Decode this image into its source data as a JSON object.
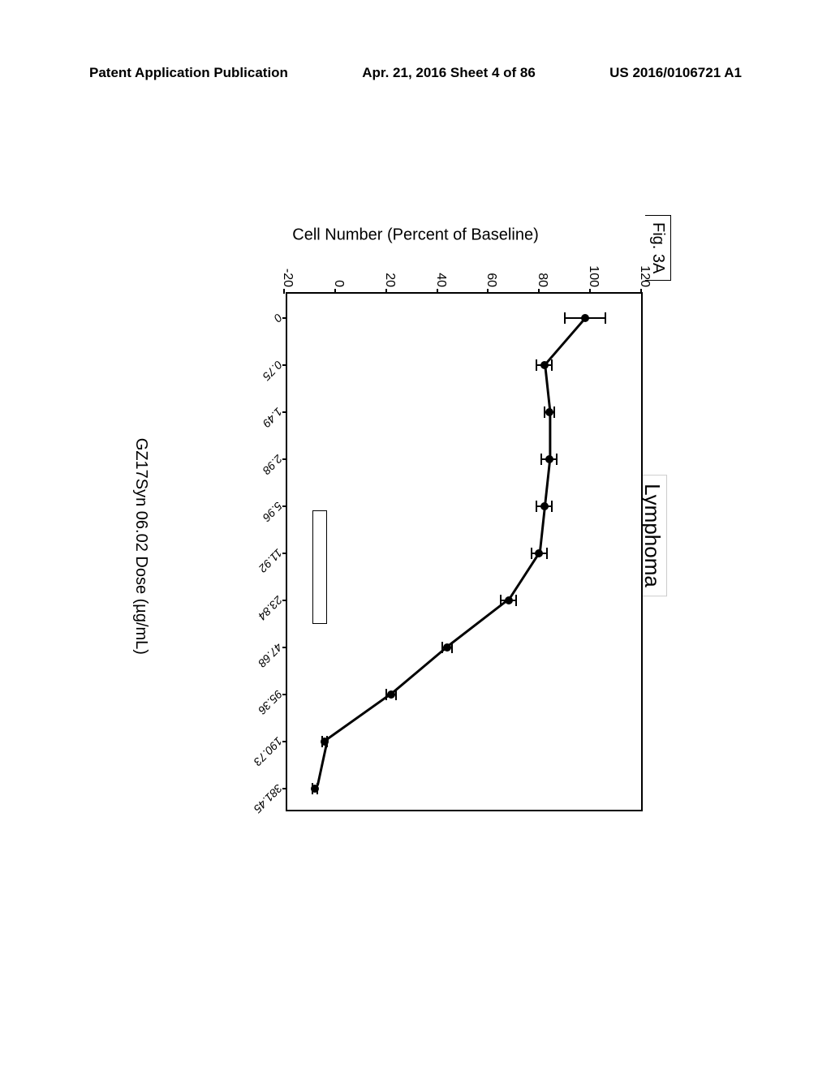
{
  "header": {
    "left": "Patent Application Publication",
    "center": "Apr. 21, 2016  Sheet 4 of 86",
    "right": "US 2016/0106721 A1"
  },
  "figure_label": "Fig. 3A",
  "chart": {
    "type": "line",
    "title": "Lymphoma",
    "x_axis_label": "GZ17Syn 06.02 Dose (µg/mL)",
    "y_axis_label": "Cell Number (Percent of Baseline)",
    "y_ticks": [
      -20,
      0,
      20,
      40,
      60,
      80,
      100,
      120
    ],
    "ylim": [
      -20,
      120
    ],
    "x_tick_labels": [
      "0",
      "0.75",
      "1.49",
      "2.98",
      "5.96",
      "11.92",
      "23.84",
      "47.68",
      "95.36",
      "190.73",
      "381.45"
    ],
    "data": {
      "x_index": [
        0,
        1,
        2,
        3,
        4,
        5,
        6,
        7,
        8,
        9,
        10
      ],
      "y": [
        98,
        82,
        84,
        84,
        82,
        80,
        68,
        44,
        22,
        -4,
        -8
      ],
      "y_err": [
        8,
        3,
        2,
        3,
        3,
        3,
        3,
        2,
        2,
        1,
        1
      ]
    },
    "line_color": "#000000",
    "marker_color": "#000000",
    "marker_size": 10,
    "line_width": 3,
    "background_color": "#ffffff",
    "legend_box": {
      "bottom_pct": 7,
      "left_pct": 42
    }
  }
}
